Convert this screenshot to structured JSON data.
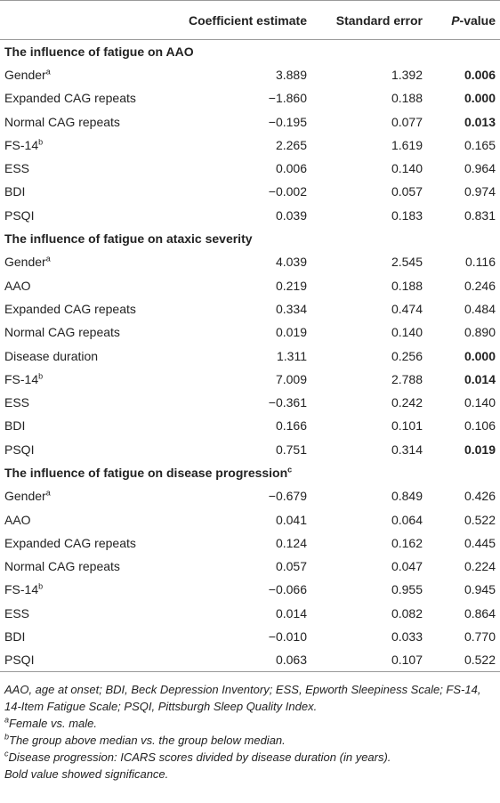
{
  "table": {
    "header": [
      "Coefficient estimate",
      "Standard error"
    ],
    "pvalue_header": [
      "P",
      "-value"
    ],
    "sections": [
      {
        "title": "The influence of fatigue on AAO",
        "rows": [
          {
            "label": "Gender",
            "sup": "a",
            "values": [
              "3.889",
              "1.392",
              "0.006"
            ],
            "bold_p": true
          },
          {
            "label": "Expanded CAG repeats",
            "values": [
              "−1.860",
              "0.188",
              "0.000"
            ],
            "bold_p": true
          },
          {
            "label": "Normal CAG repeats",
            "values": [
              "−0.195",
              "0.077",
              "0.013"
            ],
            "bold_p": true
          },
          {
            "label": "FS-14",
            "sup": "b",
            "values": [
              "2.265",
              "1.619",
              "0.165"
            ]
          },
          {
            "label": "ESS",
            "values": [
              "0.006",
              "0.140",
              "0.964"
            ]
          },
          {
            "label": "BDI",
            "values": [
              "−0.002",
              "0.057",
              "0.974"
            ]
          },
          {
            "label": "PSQI",
            "values": [
              "0.039",
              "0.183",
              "0.831"
            ]
          }
        ]
      },
      {
        "title": "The influence of fatigue on ataxic severity",
        "rows": [
          {
            "label": "Gender",
            "sup": "a",
            "values": [
              "4.039",
              "2.545",
              "0.116"
            ]
          },
          {
            "label": "AAO",
            "values": [
              "0.219",
              "0.188",
              "0.246"
            ]
          },
          {
            "label": "Expanded CAG repeats",
            "values": [
              "0.334",
              "0.474",
              "0.484"
            ]
          },
          {
            "label": "Normal CAG repeats",
            "values": [
              "0.019",
              "0.140",
              "0.890"
            ]
          },
          {
            "label": "Disease duration",
            "values": [
              "1.311",
              "0.256",
              "0.000"
            ],
            "bold_p": true
          },
          {
            "label": "FS-14",
            "sup": "b",
            "values": [
              "7.009",
              "2.788",
              "0.014"
            ],
            "bold_p": true
          },
          {
            "label": "ESS",
            "values": [
              "−0.361",
              "0.242",
              "0.140"
            ]
          },
          {
            "label": "BDI",
            "values": [
              "0.166",
              "0.101",
              "0.106"
            ]
          },
          {
            "label": "PSQI",
            "values": [
              "0.751",
              "0.314",
              "0.019"
            ],
            "bold_p": true
          }
        ]
      },
      {
        "title": "The influence of fatigue on disease progression",
        "sup": "c",
        "rows": [
          {
            "label": "Gender",
            "sup": "a",
            "values": [
              "−0.679",
              "0.849",
              "0.426"
            ]
          },
          {
            "label": "AAO",
            "values": [
              "0.041",
              "0.064",
              "0.522"
            ]
          },
          {
            "label": "Expanded CAG repeats",
            "values": [
              "0.124",
              "0.162",
              "0.445"
            ]
          },
          {
            "label": "Normal CAG repeats",
            "values": [
              "0.057",
              "0.047",
              "0.224"
            ]
          },
          {
            "label": "FS-14",
            "sup": "b",
            "values": [
              "−0.066",
              "0.955",
              "0.945"
            ]
          },
          {
            "label": "ESS",
            "values": [
              "0.014",
              "0.082",
              "0.864"
            ]
          },
          {
            "label": "BDI",
            "values": [
              "−0.010",
              "0.033",
              "0.770"
            ]
          },
          {
            "label": "PSQI",
            "values": [
              "0.063",
              "0.107",
              "0.522"
            ]
          }
        ]
      }
    ],
    "notes": [
      {
        "text": "AAO, age at onset; BDI, Beck Depression Inventory; ESS, Epworth Sleepiness Scale; FS-14, 14-Item Fatigue Scale; PSQI, Pittsburgh Sleep Quality Index."
      },
      {
        "sup": "a",
        "text": "Female vs. male."
      },
      {
        "sup": "b",
        "text": "The group above median vs. the group below median."
      },
      {
        "sup": "c",
        "text": "Disease progression: ICARS scores divided by disease duration (in years)."
      },
      {
        "text": "Bold value showed significance."
      }
    ]
  }
}
